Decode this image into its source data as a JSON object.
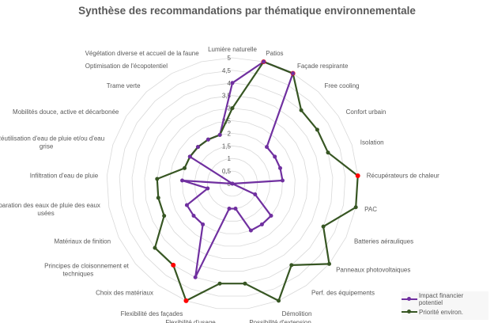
{
  "chart_data": {
    "type": "radar",
    "title": "Synthèse des recommandations par thématique environnementale",
    "categories": [
      "Lumière naturelle",
      "Patios",
      "Façade respirante",
      "Free cooling",
      "Confort urbain",
      "Isolation",
      "Récupérateurs de chaleur",
      "PAC",
      "Batteries aérauliques",
      "Panneaux photovoltaiques",
      "Perf. des équipements",
      "Démolition",
      "Possibilité d'extension",
      "Flexibilité d'usage",
      "Flexibilité des façades",
      "Choix des matériaux",
      "Principes de cloisonnement et techniques",
      "Matériaux de finition",
      "Séparation des eaux de pluie des eaux usées",
      "Infiltration d'eau de pluie",
      "Réutilisation d'eau de pluie et/ou d'eau grise",
      "Mobilités douce, active et décarbonée",
      "Trame verte",
      "Optimisation de l'écopotentiel",
      "Végétation diverse et accueil de la faune"
    ],
    "range": [
      0,
      5
    ],
    "tick_labels": [
      "0",
      "0,5",
      "1",
      "1,5",
      "2",
      "2,5",
      "3",
      "3,5",
      "4",
      "4,5",
      "5"
    ],
    "grid": true,
    "legend_placement": "bottom-right",
    "series": [
      {
        "name": "Impact financier potentiel",
        "color": "#7030a0",
        "values": [
          4,
          5,
          5,
          2,
          2,
          2,
          2,
          0,
          1,
          2,
          2,
          2,
          1,
          1,
          4,
          2,
          2,
          2,
          1,
          2,
          0,
          2,
          2,
          2,
          2
        ]
      },
      {
        "name": "Priorité environ.",
        "color": "#375623",
        "values": [
          3,
          5,
          5,
          4,
          4,
          4,
          5,
          5,
          4,
          5,
          4,
          5,
          4,
          4,
          5,
          4,
          4,
          3,
          3,
          3,
          2,
          2,
          2,
          2,
          2
        ]
      }
    ],
    "highlighted_points": {
      "series": "Priorité environ.",
      "color": "#ff0000",
      "categories": [
        "Patios",
        "Façade respirante",
        "Récupérateurs de chaleur",
        "Choix des matériaux",
        "Flexibilité des façades"
      ]
    }
  }
}
